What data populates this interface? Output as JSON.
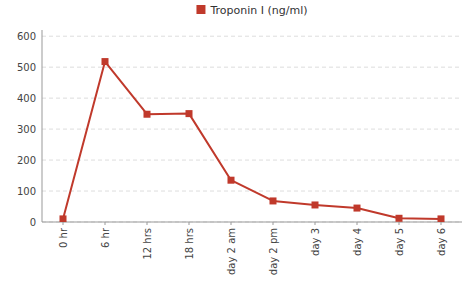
{
  "chart_data": {
    "type": "line",
    "categories": [
      "0 hr",
      "6 hr",
      "12 hrs",
      "18 hrs",
      "day 2 am",
      "day 2 pm",
      "day 3",
      "day 4",
      "day 5",
      "day 6"
    ],
    "series": [
      {
        "name": "Troponin I (ng/ml)",
        "color": "#c0392b",
        "marker": "square",
        "values": [
          10,
          518,
          348,
          350,
          135,
          68,
          55,
          45,
          12,
          10
        ]
      }
    ],
    "ylim": [
      0,
      620
    ],
    "yticks": [
      0,
      100,
      200,
      300,
      400,
      500,
      600
    ],
    "grid": true,
    "legend": "top"
  }
}
